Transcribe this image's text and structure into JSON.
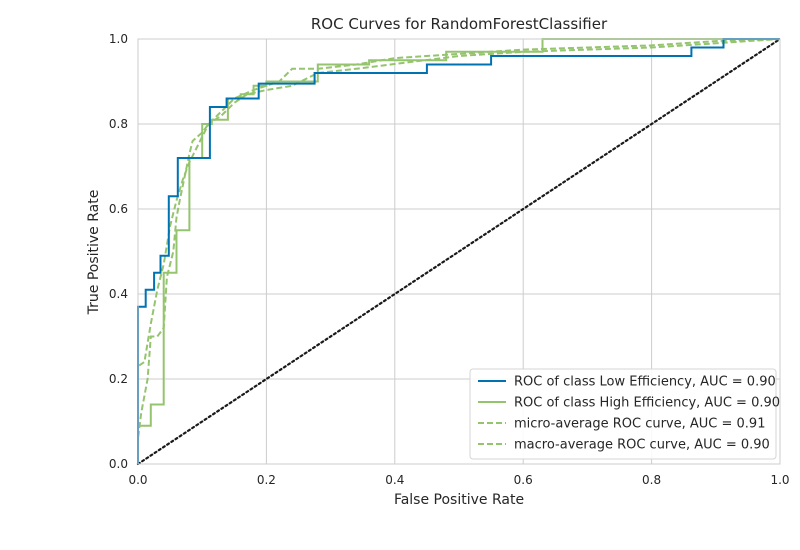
{
  "chart_data": {
    "type": "line",
    "title": "ROC Curves for RandomForestClassifier",
    "xlabel": "False Positive Rate",
    "ylabel": "True Positive Rate",
    "xlim": [
      0,
      1
    ],
    "ylim": [
      0,
      1
    ],
    "xticks": [
      "0.0",
      "0.2",
      "0.4",
      "0.6",
      "0.8",
      "1.0"
    ],
    "yticks": [
      "0.0",
      "0.2",
      "0.4",
      "0.6",
      "0.8",
      "1.0"
    ],
    "grid": true,
    "legend_position": "bottom-right",
    "series": [
      {
        "name": "ROC of class Low Efficiency, AUC = 0.90",
        "color": "#0072b2",
        "dash": "solid",
        "points": [
          [
            0,
            0
          ],
          [
            0,
            0.37
          ],
          [
            0.012,
            0.37
          ],
          [
            0.012,
            0.41
          ],
          [
            0.025,
            0.41
          ],
          [
            0.025,
            0.45
          ],
          [
            0.035,
            0.45
          ],
          [
            0.035,
            0.49
          ],
          [
            0.048,
            0.49
          ],
          [
            0.048,
            0.63
          ],
          [
            0.062,
            0.63
          ],
          [
            0.062,
            0.72
          ],
          [
            0.075,
            0.72
          ],
          [
            0.112,
            0.72
          ],
          [
            0.112,
            0.84
          ],
          [
            0.125,
            0.84
          ],
          [
            0.138,
            0.84
          ],
          [
            0.138,
            0.86
          ],
          [
            0.188,
            0.86
          ],
          [
            0.188,
            0.895
          ],
          [
            0.275,
            0.895
          ],
          [
            0.275,
            0.92
          ],
          [
            0.45,
            0.92
          ],
          [
            0.45,
            0.94
          ],
          [
            0.55,
            0.94
          ],
          [
            0.55,
            0.96
          ],
          [
            0.862,
            0.96
          ],
          [
            0.862,
            0.98
          ],
          [
            0.912,
            0.98
          ],
          [
            0.912,
            1.0
          ],
          [
            1.0,
            1.0
          ]
        ]
      },
      {
        "name": "ROC of class High Efficiency, AUC = 0.90",
        "color": "#95c46e",
        "dash": "solid",
        "points": [
          [
            0,
            0
          ],
          [
            0,
            0.09
          ],
          [
            0.02,
            0.09
          ],
          [
            0.02,
            0.14
          ],
          [
            0.04,
            0.14
          ],
          [
            0.04,
            0.45
          ],
          [
            0.06,
            0.45
          ],
          [
            0.06,
            0.55
          ],
          [
            0.08,
            0.55
          ],
          [
            0.08,
            0.72
          ],
          [
            0.1,
            0.72
          ],
          [
            0.1,
            0.8
          ],
          [
            0.115,
            0.8
          ],
          [
            0.115,
            0.81
          ],
          [
            0.14,
            0.81
          ],
          [
            0.14,
            0.86
          ],
          [
            0.16,
            0.86
          ],
          [
            0.16,
            0.87
          ],
          [
            0.18,
            0.87
          ],
          [
            0.18,
            0.89
          ],
          [
            0.2,
            0.89
          ],
          [
            0.2,
            0.9
          ],
          [
            0.28,
            0.9
          ],
          [
            0.28,
            0.94
          ],
          [
            0.36,
            0.94
          ],
          [
            0.36,
            0.95
          ],
          [
            0.48,
            0.95
          ],
          [
            0.48,
            0.97
          ],
          [
            0.63,
            0.97
          ],
          [
            0.63,
            1.0
          ],
          [
            1.0,
            1.0
          ]
        ]
      },
      {
        "name": "micro-average ROC curve, AUC = 0.91",
        "color": "#95c46e",
        "dash": "dashed",
        "points": [
          [
            0,
            0
          ],
          [
            0,
            0.23
          ],
          [
            0.01,
            0.24
          ],
          [
            0.02,
            0.33
          ],
          [
            0.03,
            0.41
          ],
          [
            0.04,
            0.47
          ],
          [
            0.05,
            0.56
          ],
          [
            0.06,
            0.62
          ],
          [
            0.07,
            0.67
          ],
          [
            0.08,
            0.71
          ],
          [
            0.09,
            0.74
          ],
          [
            0.1,
            0.77
          ],
          [
            0.11,
            0.8
          ],
          [
            0.13,
            0.82
          ],
          [
            0.15,
            0.85
          ],
          [
            0.17,
            0.87
          ],
          [
            0.2,
            0.88
          ],
          [
            0.24,
            0.89
          ],
          [
            0.28,
            0.92
          ],
          [
            0.34,
            0.93
          ],
          [
            0.42,
            0.945
          ],
          [
            0.5,
            0.96
          ],
          [
            0.6,
            0.97
          ],
          [
            0.7,
            0.975
          ],
          [
            0.8,
            0.98
          ],
          [
            0.9,
            0.99
          ],
          [
            0.95,
            0.995
          ],
          [
            1.0,
            1.0
          ]
        ]
      },
      {
        "name": "macro-average ROC curve, AUC = 0.90",
        "color": "#95c46e",
        "dash": "dashed",
        "points": [
          [
            0,
            0
          ],
          [
            0,
            0.06
          ],
          [
            0.005,
            0.12
          ],
          [
            0.015,
            0.2
          ],
          [
            0.02,
            0.3
          ],
          [
            0.03,
            0.3
          ],
          [
            0.04,
            0.32
          ],
          [
            0.045,
            0.44
          ],
          [
            0.055,
            0.5
          ],
          [
            0.06,
            0.58
          ],
          [
            0.065,
            0.62
          ],
          [
            0.08,
            0.73
          ],
          [
            0.085,
            0.76
          ],
          [
            0.1,
            0.78
          ],
          [
            0.11,
            0.8
          ],
          [
            0.13,
            0.83
          ],
          [
            0.15,
            0.86
          ],
          [
            0.18,
            0.88
          ],
          [
            0.22,
            0.9
          ],
          [
            0.24,
            0.93
          ],
          [
            0.28,
            0.93
          ],
          [
            0.34,
            0.94
          ],
          [
            0.4,
            0.955
          ],
          [
            0.5,
            0.965
          ],
          [
            0.6,
            0.975
          ],
          [
            0.7,
            0.98
          ],
          [
            0.8,
            0.985
          ],
          [
            0.9,
            0.995
          ],
          [
            1.0,
            1.0
          ]
        ]
      },
      {
        "name": "",
        "color": "#1a1a1a",
        "dash": "dotted",
        "points": [
          [
            0,
            0
          ],
          [
            1,
            1
          ]
        ]
      }
    ]
  }
}
